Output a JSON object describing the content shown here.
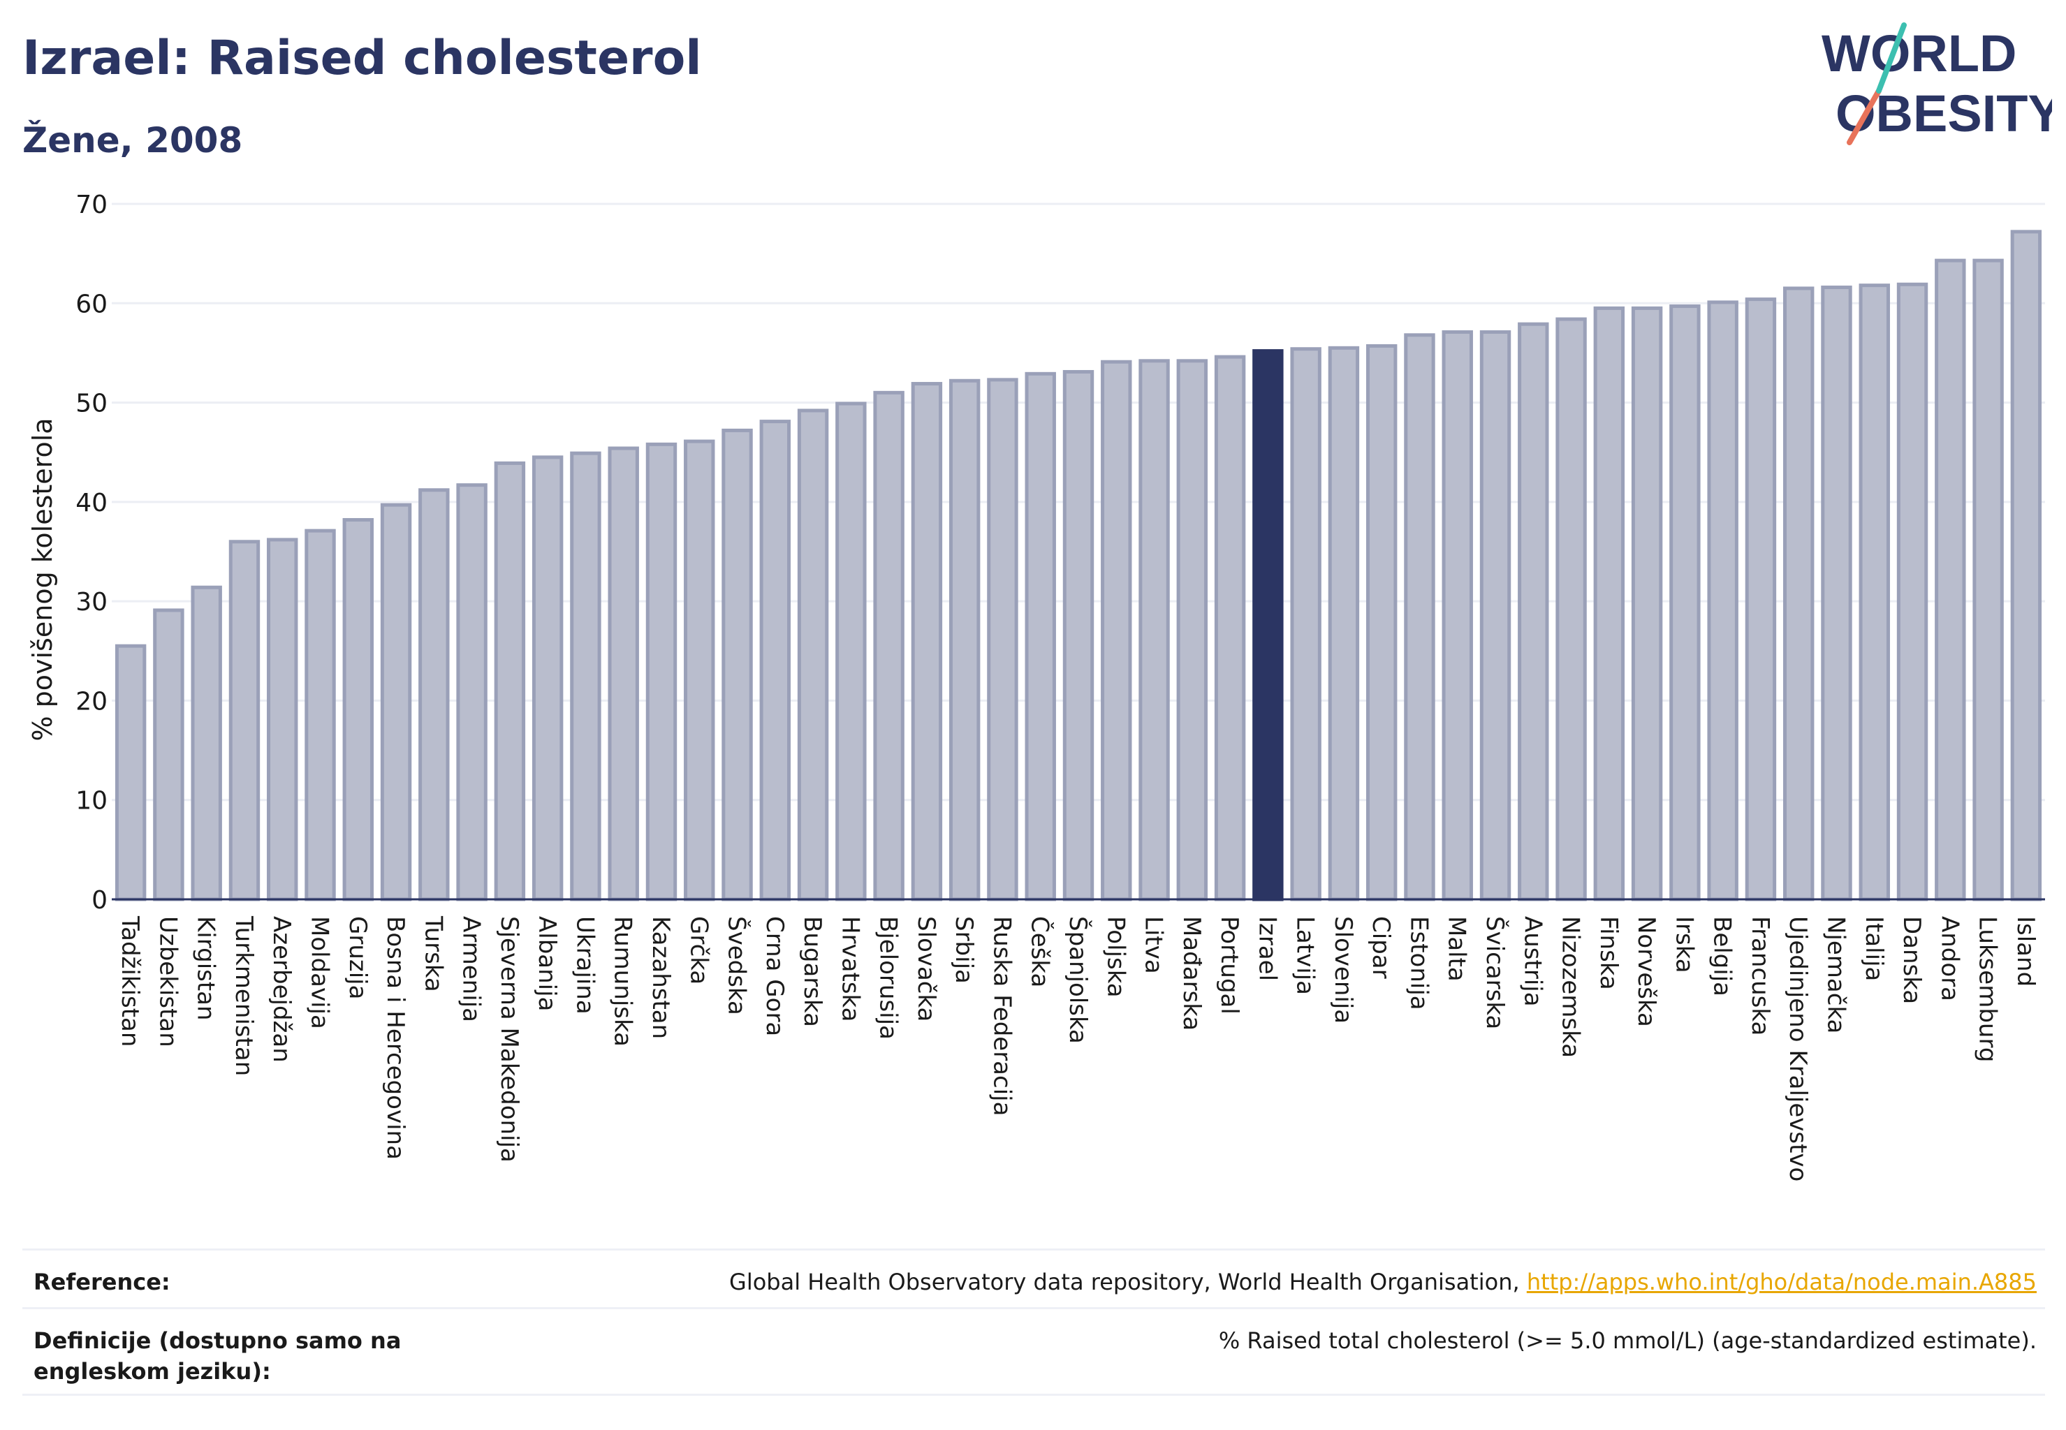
{
  "header": {
    "title": "Izrael: Raised cholesterol",
    "subtitle": "Žene, 2008"
  },
  "logo": {
    "line1": "WORLD",
    "line2": "OBESITY"
  },
  "colors": {
    "bar": "#b9bdcd",
    "bar_outline": "#9aa0b8",
    "highlight": "#2b3563",
    "text": "#2b3563"
  },
  "chart_data": {
    "type": "bar",
    "ylabel": "% povišenog kolesterola",
    "ylim": [
      0,
      70
    ],
    "yticks": [
      0,
      10,
      20,
      30,
      40,
      50,
      60,
      70
    ],
    "grid": true,
    "highlight": "Izrael",
    "categories": [
      "Tadžikistan",
      "Uzbekistan",
      "Kirgistan",
      "Turkmenistan",
      "Azerbejdžan",
      "Moldavija",
      "Gruzija",
      "Bosna i Hercegovina",
      "Turska",
      "Armenija",
      "Sjeverna Makedonija",
      "Albanija",
      "Ukrajina",
      "Rumunjska",
      "Kazahstan",
      "Grčka",
      "Švedska",
      "Crna Gora",
      "Bugarska",
      "Hrvatska",
      "Bjelorusija",
      "Slovačka",
      "Srbija",
      "Ruska Federacija",
      "Češka",
      "Španjolska",
      "Poljska",
      "Litva",
      "Mađarska",
      "Portugal",
      "Izrael",
      "Latvija",
      "Slovenija",
      "Cipar",
      "Estonija",
      "Malta",
      "Švicarska",
      "Austrija",
      "Nizozemska",
      "Finska",
      "Norveška",
      "Irska",
      "Belgija",
      "Francuska",
      "Ujedinjeno Kraljevstvo",
      "Njemačka",
      "Italija",
      "Danska",
      "Andora",
      "Luksemburg",
      "Island"
    ],
    "values": [
      25.5,
      29.1,
      31.4,
      36.0,
      36.2,
      37.1,
      38.2,
      39.7,
      41.2,
      41.7,
      43.9,
      44.5,
      44.9,
      45.4,
      45.8,
      46.1,
      47.2,
      48.1,
      49.2,
      49.9,
      51.0,
      51.9,
      52.2,
      52.3,
      52.9,
      53.1,
      54.1,
      54.2,
      54.2,
      54.6,
      55.2,
      55.4,
      55.5,
      55.7,
      56.8,
      57.1,
      57.1,
      57.9,
      58.4,
      59.5,
      59.5,
      59.7,
      60.1,
      60.4,
      61.5,
      61.6,
      61.8,
      61.9,
      64.3,
      64.3,
      67.2
    ]
  },
  "reference": {
    "label": "Reference:",
    "text": "Global Health Observatory data repository, World Health Organisation, ",
    "link": "http://apps.who.int/gho/data/node.main.A885"
  },
  "definition": {
    "label": "Definicije (dostupno samo na engleskom jeziku):",
    "text": "% Raised total cholesterol (>= 5.0 mmol/L) (age-standardized estimate)."
  }
}
